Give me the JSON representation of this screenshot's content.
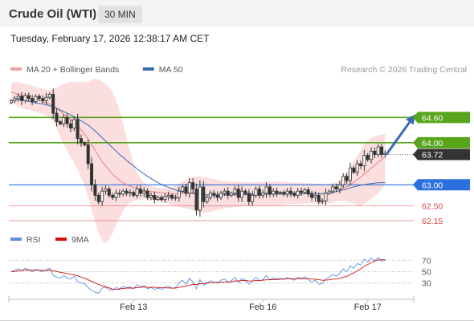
{
  "header": {
    "title": "Crude Oil (WTI)",
    "interval": "30 MIN",
    "timestamp": "Tuesday, February 17, 2026 12:38:17 AM CET"
  },
  "colors": {
    "bollinger": "#f4a0a0",
    "ma20": "#e88080",
    "ma50": "#3a6ab4",
    "resistance": "#57a51a",
    "support_blue": "#2c6fde",
    "support_red": "#e04040",
    "current": "#333333",
    "rsi": "#5b8ee0",
    "rsi_ma": "#d01010",
    "candle_up": "#ffffff",
    "candle_down": "#333333"
  },
  "chart_data": [
    {
      "type": "candlestick",
      "legend": [
        {
          "label": "MA 20 + Bollinger Bands",
          "color": "#f4a0a0"
        },
        {
          "label": "MA 50",
          "color": "#3a6ab4"
        }
      ],
      "credit": "Research © 2026 Trading Central",
      "ylim": [
        61.9,
        65.35
      ],
      "x_tick_labels": [
        {
          "label": "Feb 13",
          "index": 35
        },
        {
          "label": "Feb 16",
          "index": 72
        },
        {
          "label": "Feb 17",
          "index": 102
        }
      ],
      "levels": [
        {
          "value": 64.6,
          "label": "64.60",
          "role": "resistance",
          "color": "#57a51a",
          "style": "solid"
        },
        {
          "value": 64.0,
          "label": "64.00",
          "role": "resistance",
          "color": "#57a51a",
          "style": "solid"
        },
        {
          "value": 63.72,
          "label": "63.72",
          "role": "current",
          "color": "#333333",
          "style": "dotted"
        },
        {
          "value": 63.0,
          "label": "63.00",
          "role": "pivot",
          "color": "#2c6fde",
          "style": "solid"
        },
        {
          "value": 62.5,
          "label": "62.50",
          "role": "support",
          "color": "#e04040",
          "style": "thin"
        },
        {
          "value": 62.15,
          "label": "62.15",
          "role": "support",
          "color": "#e04040",
          "style": "thin"
        }
      ],
      "forecast_arrow": {
        "from": 63.72,
        "to": 64.6
      },
      "closes": [
        65.0,
        65.05,
        65.1,
        65.0,
        65.12,
        65.05,
        64.98,
        65.1,
        65.05,
        65.0,
        65.08,
        65.15,
        64.7,
        64.5,
        64.45,
        64.6,
        64.45,
        64.35,
        64.55,
        64.1,
        64.0,
        63.95,
        63.5,
        63.0,
        62.75,
        62.6,
        62.85,
        62.9,
        62.75,
        62.7,
        62.8,
        62.78,
        62.85,
        62.8,
        62.82,
        62.75,
        62.9,
        62.8,
        62.85,
        62.7,
        62.75,
        62.65,
        62.7,
        62.65,
        62.72,
        62.75,
        62.68,
        62.7,
        62.85,
        62.95,
        62.8,
        63.05,
        62.9,
        62.4,
        62.95,
        62.6,
        62.7,
        62.8,
        62.75,
        62.7,
        62.8,
        62.85,
        62.75,
        62.8,
        62.9,
        62.7,
        62.85,
        62.8,
        62.6,
        62.75,
        62.9,
        62.75,
        62.8,
        62.95,
        62.78,
        62.85,
        62.8,
        62.82,
        62.78,
        62.85,
        62.8,
        62.75,
        62.85,
        62.82,
        62.88,
        62.78,
        62.7,
        62.75,
        62.6,
        62.62,
        62.8,
        62.85,
        62.95,
        62.9,
        63.0,
        63.2,
        63.1,
        63.4,
        63.3,
        63.5,
        63.45,
        63.7,
        63.6,
        63.8,
        63.72,
        63.9,
        63.72,
        63.75
      ],
      "ma20": [
        65.2,
        65.18,
        65.15,
        65.12,
        65.1,
        65.08,
        65.05,
        65.03,
        65.0,
        64.98,
        64.95,
        64.92,
        64.88,
        64.82,
        64.75,
        64.68,
        64.62,
        64.55,
        64.48,
        64.4,
        64.3,
        64.2,
        64.08,
        63.95,
        63.82,
        63.68,
        63.55,
        63.45,
        63.35,
        63.25,
        63.18,
        63.1,
        63.05,
        63.0,
        62.97,
        62.94,
        62.91,
        62.89,
        62.87,
        62.85,
        62.84,
        62.83,
        62.82,
        62.81,
        62.8,
        62.79,
        62.78,
        62.78,
        62.79,
        62.8,
        62.79,
        62.8,
        62.79,
        62.77,
        62.77,
        62.76,
        62.76,
        62.77,
        62.77,
        62.77,
        62.78,
        62.78,
        62.78,
        62.79,
        62.79,
        62.78,
        62.78,
        62.79,
        62.78,
        62.78,
        62.78,
        62.78,
        62.78,
        62.79,
        62.79,
        62.8,
        62.8,
        62.8,
        62.8,
        62.81,
        62.81,
        62.8,
        62.81,
        62.81,
        62.82,
        62.81,
        62.8,
        62.8,
        62.79,
        62.78,
        62.79,
        62.8,
        62.82,
        62.84,
        62.87,
        62.92,
        62.95,
        63.01,
        63.06,
        63.12,
        63.18,
        63.26,
        63.32,
        63.4,
        63.46,
        63.54,
        63.6,
        63.66
      ],
      "bb_upper": [
        65.42,
        65.45,
        65.45,
        65.42,
        65.4,
        65.38,
        65.35,
        65.32,
        65.3,
        65.28,
        65.26,
        65.24,
        65.26,
        65.3,
        65.35,
        65.4,
        65.42,
        65.44,
        65.45,
        65.45,
        65.44,
        65.43,
        65.45,
        65.5,
        65.52,
        65.5,
        65.45,
        65.4,
        65.32,
        65.2,
        65.0,
        64.75,
        64.45,
        64.1,
        63.8,
        63.5,
        63.3,
        63.15,
        63.05,
        63.0,
        62.97,
        62.95,
        62.93,
        62.92,
        62.92,
        62.93,
        62.95,
        62.98,
        63.02,
        63.08,
        63.12,
        63.15,
        63.18,
        63.2,
        63.2,
        63.18,
        63.17,
        63.15,
        63.14,
        63.12,
        63.1,
        63.1,
        63.09,
        63.08,
        63.08,
        63.07,
        63.07,
        63.06,
        63.06,
        63.06,
        63.06,
        63.07,
        63.07,
        63.08,
        63.08,
        63.08,
        63.08,
        63.08,
        63.07,
        63.06,
        63.06,
        63.05,
        63.05,
        63.05,
        63.05,
        63.04,
        63.04,
        63.03,
        63.03,
        63.02,
        63.02,
        63.03,
        63.04,
        63.06,
        63.1,
        63.2,
        63.3,
        63.42,
        63.55,
        63.7,
        63.82,
        63.95,
        64.05,
        64.12,
        64.15,
        64.18,
        64.2,
        64.2
      ],
      "bb_lower": [
        64.98,
        64.92,
        64.85,
        64.82,
        64.8,
        64.78,
        64.75,
        64.74,
        64.7,
        64.68,
        64.65,
        64.6,
        64.5,
        64.34,
        64.15,
        63.96,
        63.82,
        63.66,
        63.51,
        63.35,
        63.16,
        62.97,
        62.71,
        62.4,
        62.12,
        61.86,
        61.68,
        61.6,
        61.7,
        61.85,
        62.05,
        62.22,
        62.38,
        62.5,
        62.58,
        62.62,
        62.64,
        62.65,
        62.66,
        62.66,
        62.65,
        62.64,
        62.63,
        62.6,
        62.58,
        62.55,
        62.52,
        62.5,
        62.48,
        62.46,
        62.44,
        62.42,
        62.4,
        62.36,
        62.34,
        62.34,
        62.35,
        62.36,
        62.38,
        62.4,
        62.42,
        62.44,
        62.45,
        62.46,
        62.48,
        62.48,
        62.5,
        62.5,
        62.5,
        62.5,
        62.5,
        62.5,
        62.5,
        62.5,
        62.5,
        62.5,
        62.52,
        62.52,
        62.52,
        62.54,
        62.54,
        62.55,
        62.55,
        62.55,
        62.56,
        62.56,
        62.56,
        62.56,
        62.55,
        62.54,
        62.55,
        62.56,
        62.58,
        62.6,
        62.62,
        62.62,
        62.6,
        62.58,
        62.55,
        62.5,
        62.5,
        62.55,
        62.6,
        62.66,
        62.72,
        62.8,
        62.9,
        63.0
      ],
      "ma50": [
        64.98,
        65.02,
        65.03,
        65.02,
        65.0,
        64.98,
        64.96,
        64.95,
        64.93,
        64.92,
        64.9,
        64.88,
        64.85,
        64.82,
        64.78,
        64.74,
        64.7,
        64.66,
        64.62,
        64.57,
        64.52,
        64.47,
        64.42,
        64.35,
        64.28,
        64.2,
        64.12,
        64.04,
        63.96,
        63.88,
        63.8,
        63.72,
        63.65,
        63.58,
        63.51,
        63.45,
        63.38,
        63.32,
        63.26,
        63.2,
        63.15,
        63.1,
        63.05,
        63.01,
        62.97,
        62.94,
        62.91,
        62.88,
        62.86,
        62.84,
        62.82,
        62.81,
        62.8,
        62.79,
        62.78,
        62.77,
        62.76,
        62.76,
        62.76,
        62.76,
        62.76,
        62.76,
        62.76,
        62.77,
        62.77,
        62.77,
        62.77,
        62.77,
        62.77,
        62.77,
        62.78,
        62.78,
        62.78,
        62.78,
        62.78,
        62.78,
        62.78,
        62.78,
        62.78,
        62.78,
        62.78,
        62.78,
        62.78,
        62.78,
        62.79,
        62.79,
        62.79,
        62.79,
        62.79,
        62.79,
        62.8,
        62.81,
        62.82,
        62.84,
        62.86,
        62.88,
        62.9,
        62.93,
        62.95,
        62.97,
        62.99,
        63.0,
        63.02,
        63.03,
        63.04,
        63.05,
        63.05,
        63.05
      ]
    },
    {
      "type": "line",
      "legend": [
        {
          "label": "RSI",
          "color": "#5b8ee0"
        },
        {
          "label": "9MA",
          "color": "#d01010"
        }
      ],
      "ylim": [
        0,
        100
      ],
      "reference_lines": [
        70,
        50,
        30
      ],
      "tick_labels": [
        "70",
        "50",
        "30"
      ],
      "series": [
        {
          "name": "RSI",
          "values": [
            50,
            53,
            55,
            52,
            56,
            53,
            50,
            54,
            52,
            50,
            53,
            56,
            44,
            40,
            39,
            43,
            39,
            37,
            42,
            32,
            30,
            29,
            22,
            17,
            14,
            12,
            21,
            23,
            18,
            17,
            22,
            20,
            24,
            22,
            23,
            20,
            27,
            23,
            26,
            20,
            22,
            19,
            21,
            19,
            23,
            24,
            21,
            22,
            30,
            35,
            28,
            38,
            32,
            20,
            36,
            26,
            30,
            34,
            32,
            30,
            35,
            37,
            32,
            34,
            40,
            31,
            38,
            35,
            28,
            34,
            40,
            34,
            36,
            43,
            36,
            39,
            37,
            38,
            36,
            40,
            37,
            35,
            40,
            38,
            41,
            36,
            32,
            35,
            28,
            29,
            37,
            40,
            45,
            42,
            47,
            55,
            50,
            60,
            56,
            64,
            62,
            72,
            67,
            74,
            69,
            75,
            68,
            70
          ]
        },
        {
          "name": "9MA",
          "values": [
            50,
            50.5,
            51.5,
            52,
            52.8,
            53,
            52.5,
            52.7,
            52.5,
            52.2,
            52.3,
            52.8,
            51.5,
            50.2,
            48.8,
            48,
            46.8,
            45.4,
            44.5,
            42.5,
            40.5,
            38.6,
            35.8,
            32.8,
            30.2,
            27.3,
            25.5,
            23.5,
            21.6,
            19.5,
            19.1,
            19.3,
            20.5,
            21.1,
            21.3,
            21.1,
            22,
            22.4,
            23,
            22.4,
            22.6,
            22.4,
            22.1,
            21.7,
            21.4,
            21.4,
            21.1,
            21.1,
            22.4,
            23.8,
            24.7,
            26.2,
            27.7,
            27.4,
            28.7,
            29.1,
            29.8,
            30.6,
            30.9,
            31.2,
            31.3,
            31.6,
            31.9,
            32.1,
            33.9,
            33.7,
            34.4,
            34.5,
            33.7,
            33.6,
            34.4,
            34.6,
            34.9,
            35.7,
            35.7,
            36.1,
            36.2,
            36.8,
            37.4,
            37.6,
            37.7,
            37.5,
            37.8,
            37.5,
            37.8,
            37.6,
            37,
            36.8,
            35.8,
            35,
            35.1,
            35.6,
            36.7,
            37.4,
            38.1,
            40.1,
            41.8,
            44.9,
            47.7,
            51.4,
            55.1,
            59.4,
            62.5,
            66,
            68.7,
            70.5,
            70.8,
            71.2
          ]
        }
      ]
    }
  ]
}
